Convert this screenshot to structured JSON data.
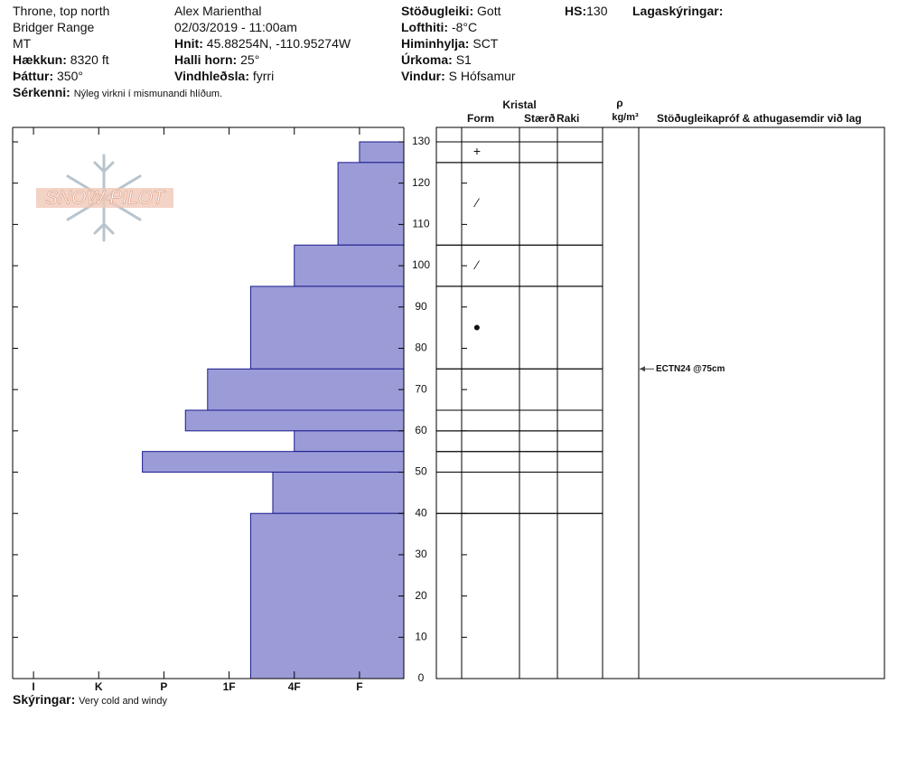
{
  "header": {
    "col1": [
      "Throne, top north",
      "Bridger Range",
      "MT"
    ],
    "elevation": {
      "label": "Hækkun:",
      "value": "8320 ft"
    },
    "aspect": {
      "label": "Þáttur:",
      "value": "350°"
    },
    "features": {
      "label": "Sérkenni:",
      "value": "Nýleg virkni í mismunandi hlíðum."
    },
    "observer": "Alex Marienthal",
    "datetime": "02/03/2019 - 11:00am",
    "coords": {
      "label": "Hnit:",
      "value": "45.88254N, -110.95274W"
    },
    "slope": {
      "label": "Halli horn:",
      "value": "25°"
    },
    "wind_loading": {
      "label": "Vindhleðsla:",
      "value": "fyrri"
    },
    "stability": {
      "label": "Stöðugleiki:",
      "value": "Gott"
    },
    "air_temp": {
      "label": "Lofthiti:",
      "value": "-8°C"
    },
    "sky": {
      "label": "Himinhylja:",
      "value": "SCT"
    },
    "precip": {
      "label": "Úrkoma:",
      "value": "S1"
    },
    "wind": {
      "label": "Vindur:",
      "value": "S Hófsamur"
    },
    "hs": {
      "label": "HS:",
      "value": 130
    },
    "layer_notes": "Lagaskýringar:"
  },
  "logo": "SNOW PILOT",
  "table": {
    "crystal": "Kristal",
    "form": "Form",
    "size": "Stærð",
    "moisture": "Raki",
    "rho": "ρ",
    "density_unit": "kg/m³",
    "tests_header": "Stöðugleikapróf & athugasemdir við lag"
  },
  "chart_data": {
    "type": "hardness_profile",
    "layer_top": [
      130,
      125,
      105,
      95,
      75,
      65,
      60,
      55,
      50,
      40
    ],
    "layer_bottom": [
      125,
      105,
      95,
      75,
      65,
      60,
      55,
      50,
      40,
      0
    ],
    "hardness": [
      1,
      1.33,
      2,
      2.67,
      3.33,
      3.67,
      2,
      4.33,
      2.33,
      2.67
    ],
    "form": [
      "+",
      "⁄",
      "⁄",
      "●",
      null,
      null,
      null,
      null,
      null,
      null
    ],
    "color": "#9b9bd8",
    "edge_color": "#1a1a8c",
    "xlim": [
      6.32,
      0.32
    ],
    "xticks": [
      {
        "value": 6,
        "label": "I"
      },
      {
        "value": 5,
        "label": "K"
      },
      {
        "value": 4,
        "label": "P"
      },
      {
        "value": 3,
        "label": "1F"
      },
      {
        "value": 2,
        "label": "4F"
      },
      {
        "value": 1,
        "label": "F"
      }
    ],
    "ylim": [
      0,
      133.5
    ],
    "yticks": [
      0,
      10,
      20,
      30,
      40,
      50,
      60,
      70,
      80,
      90,
      100,
      110,
      120,
      130
    ],
    "tests": [
      {
        "label": "ECTN24 @75cm",
        "depth": 75
      }
    ]
  },
  "footer": {
    "label": "Skýringar:",
    "value": "Very cold and windy"
  }
}
